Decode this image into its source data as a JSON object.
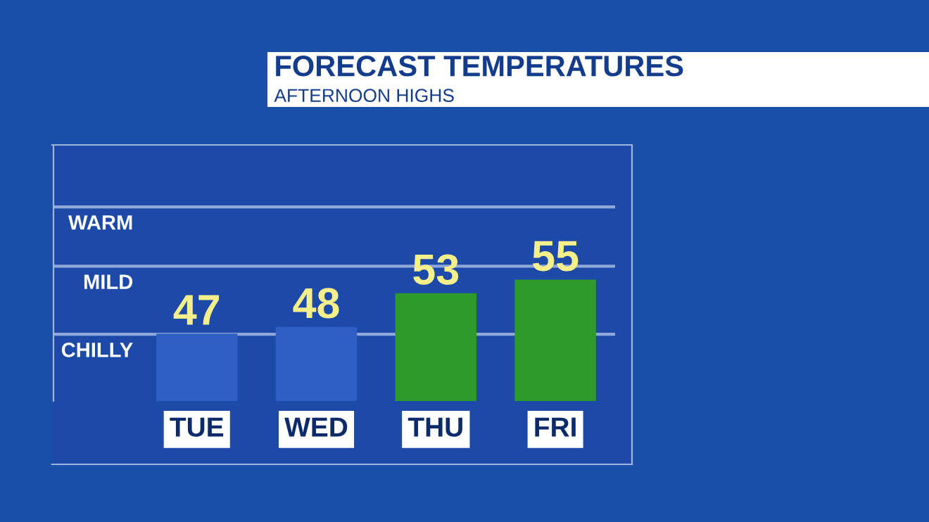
{
  "chart_data": {
    "type": "bar",
    "title": "FORECAST TEMPERATURES",
    "subtitle": "AFTERNOON HIGHS",
    "categories": [
      "TUE",
      "WED",
      "THU",
      "FRI"
    ],
    "values": [
      47,
      48,
      53,
      55
    ],
    "colors": [
      "#2f5fc4",
      "#2f5fc4",
      "#2e9a2c",
      "#2e9a2c"
    ],
    "data_labels": true,
    "ylim": [
      37,
      75
    ],
    "annotations": [
      "CHILLY",
      "MILD",
      "WARM"
    ],
    "ref_lines": [
      {
        "axis": "y",
        "value": 46.9,
        "label": null,
        "color": "#8fa8d8"
      },
      {
        "axis": "y",
        "value": 57,
        "label": null,
        "color": "#8fa8d8"
      },
      {
        "axis": "y",
        "value": 65.8,
        "label": null,
        "color": "#8fa8d8"
      }
    ],
    "grid": false
  }
}
